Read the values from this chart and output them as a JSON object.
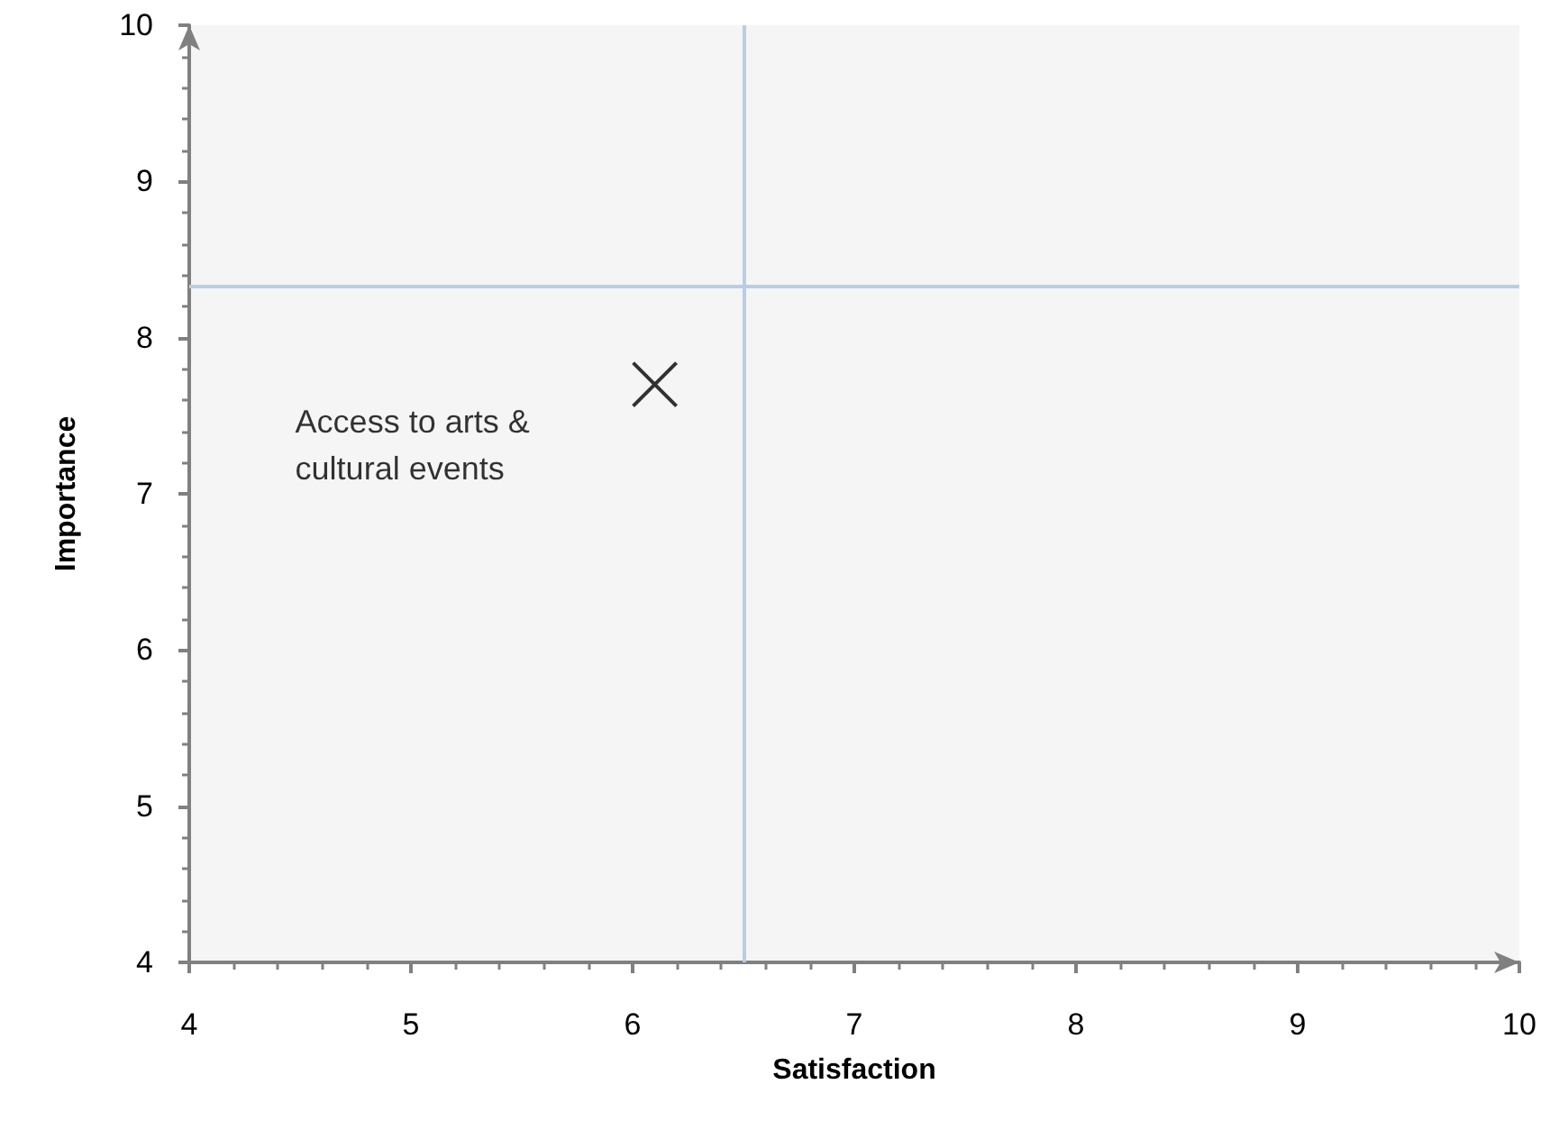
{
  "chart_data": {
    "type": "scatter",
    "xlabel": "Satisfaction",
    "ylabel": "Importance",
    "series": [
      {
        "name": "Access to arts & cultural events",
        "color": "#000000",
        "x": [
          6.1
        ],
        "values": [
          7.7
        ]
      }
    ],
    "xlim": [
      4,
      10
    ],
    "xticks": [
      4,
      5,
      6,
      7,
      8,
      9,
      10
    ],
    "ylim": [
      4,
      10
    ],
    "yticks": [
      4,
      5,
      6,
      7,
      8,
      9,
      10
    ],
    "ref_lines": [
      {
        "axis": "x",
        "value": 6.5,
        "color": "#b9cde5"
      },
      {
        "axis": "y",
        "value": 8.33,
        "color": "#b9cde5"
      }
    ],
    "grid": false,
    "legend": false,
    "marker": "cross"
  }
}
